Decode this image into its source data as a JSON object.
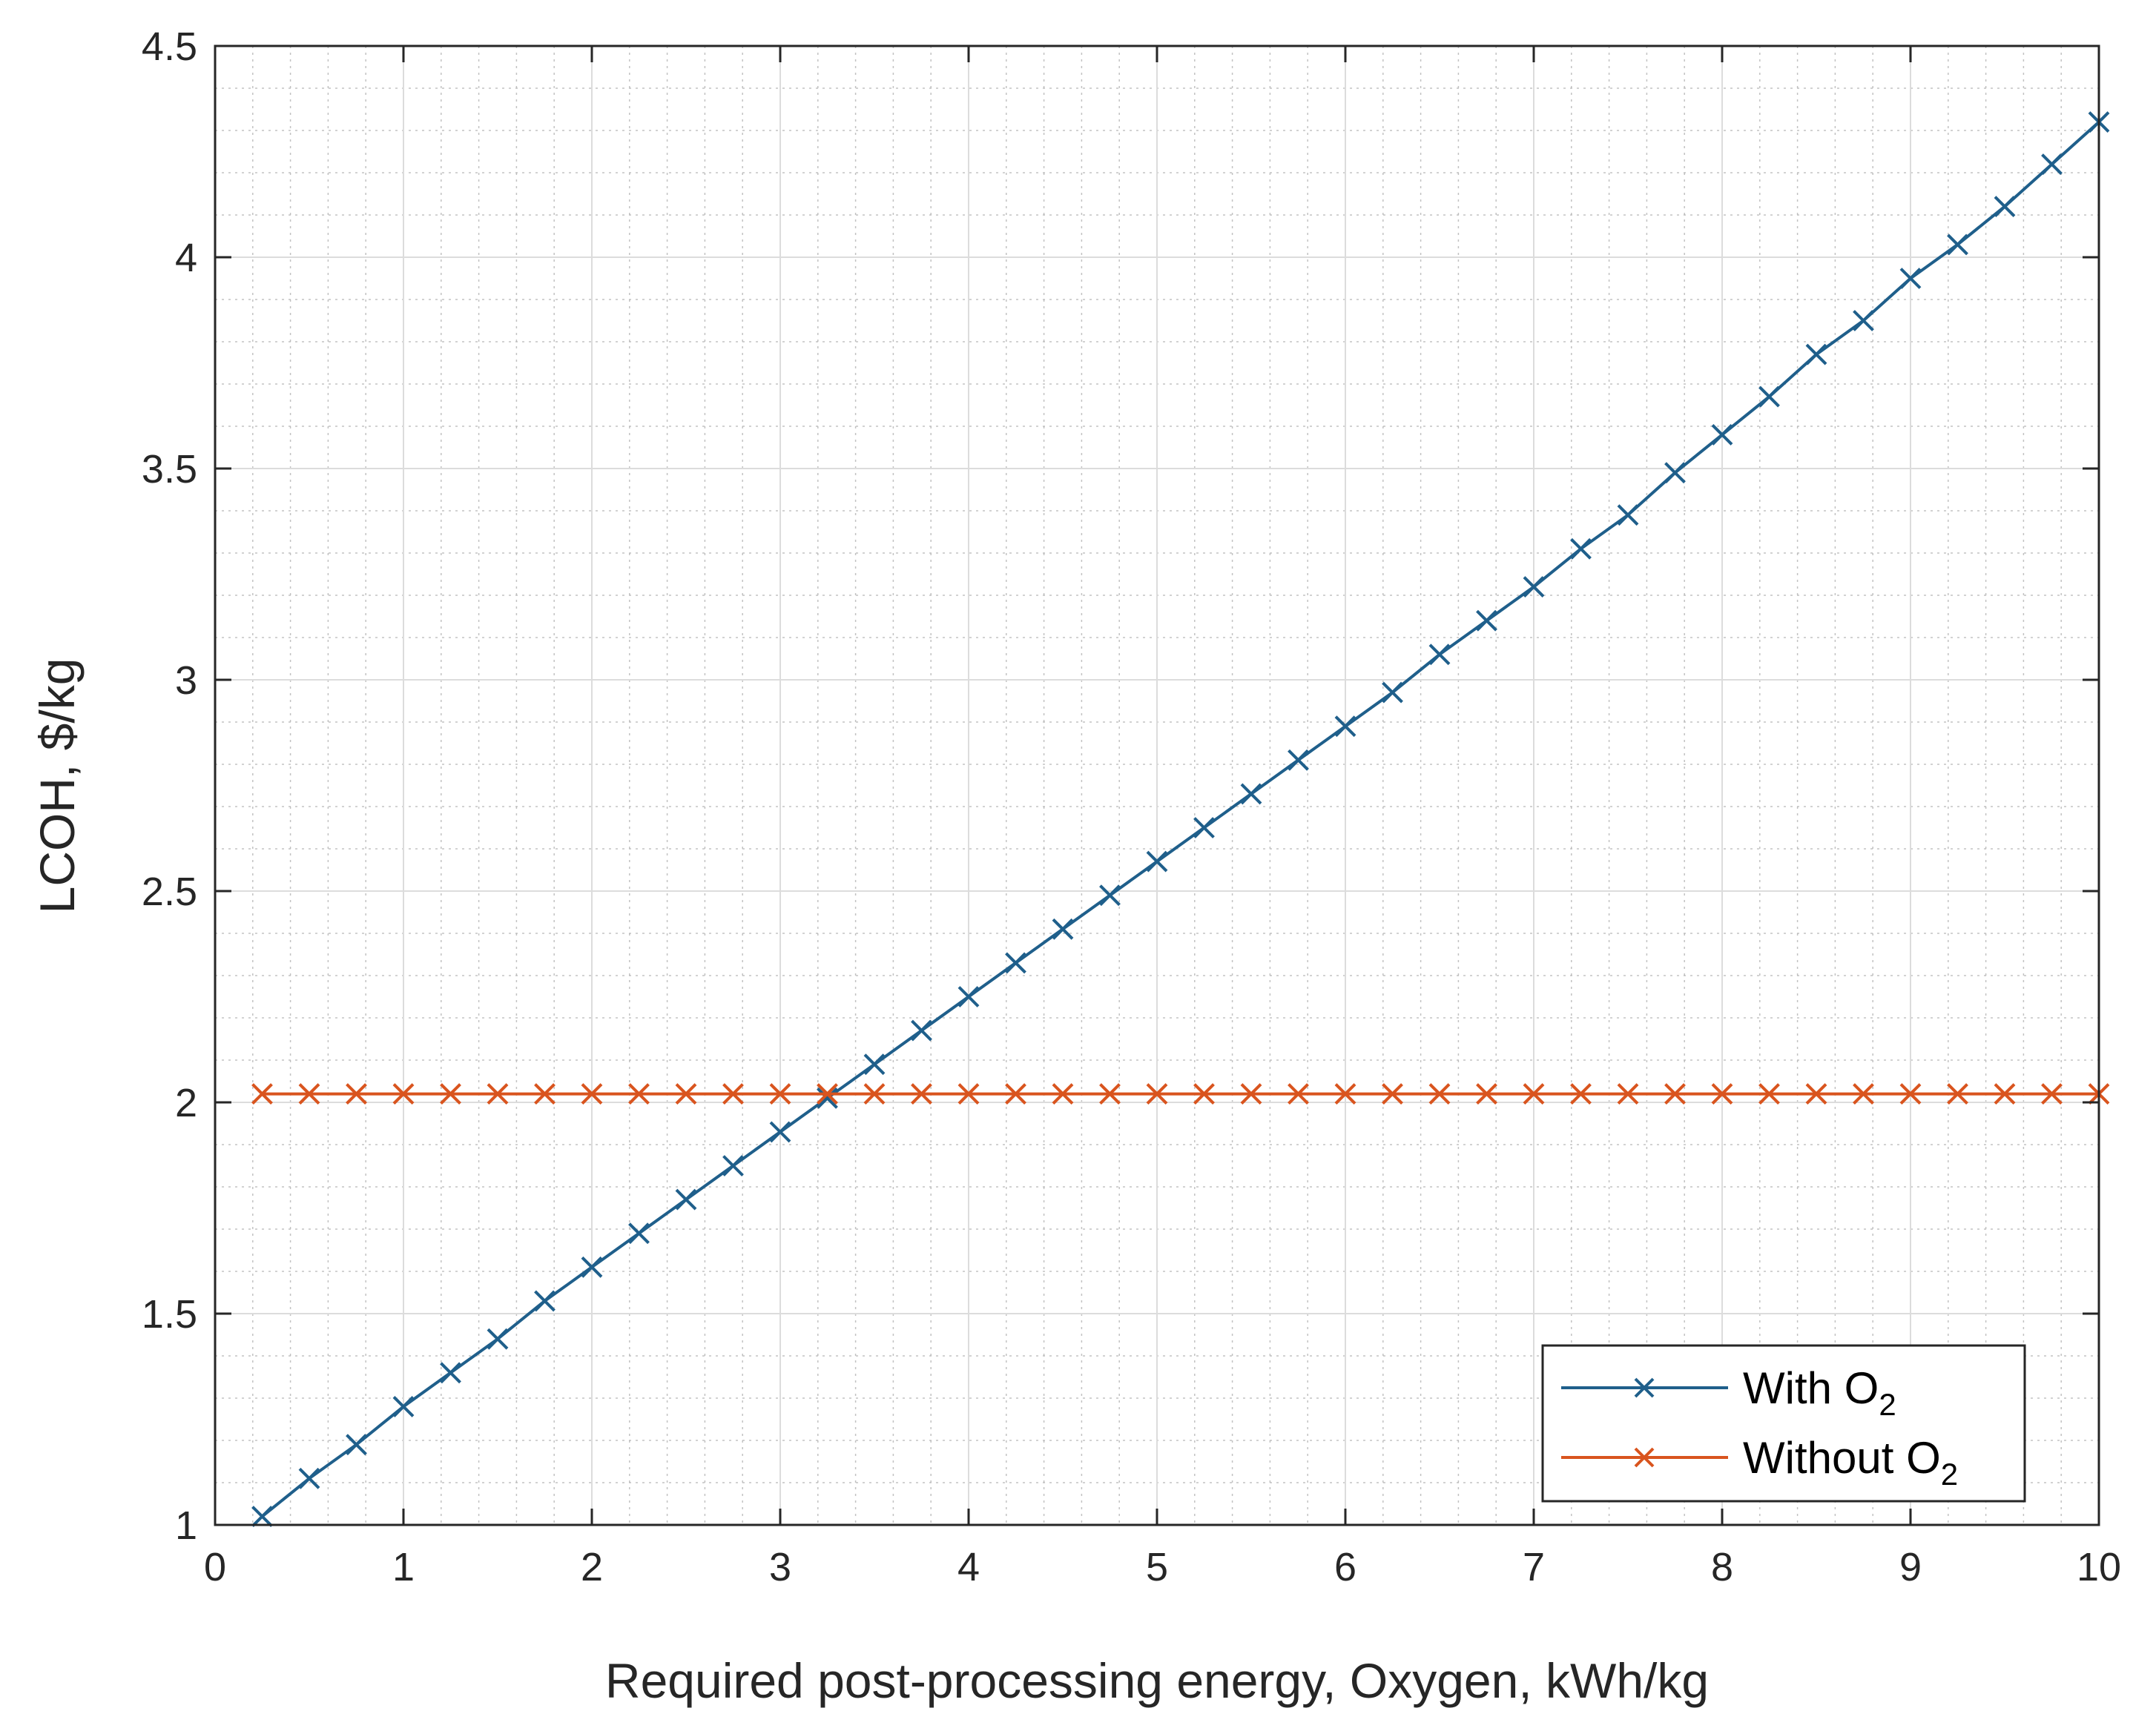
{
  "chart_data": {
    "type": "line",
    "title": "",
    "xlabel": "Required post-processing energy, Oxygen, kWh/kg",
    "ylabel": "LCOH, $/kg",
    "xlim": [
      0,
      10
    ],
    "ylim": [
      1,
      4.5
    ],
    "xticks": [
      0,
      1,
      2,
      3,
      4,
      5,
      6,
      7,
      8,
      9,
      10
    ],
    "yticks": [
      1,
      1.5,
      2,
      2.5,
      3,
      3.5,
      4,
      4.5
    ],
    "xtick_labels": [
      "0",
      "1",
      "2",
      "3",
      "4",
      "5",
      "6",
      "7",
      "8",
      "9",
      "10"
    ],
    "ytick_labels": [
      "1",
      "1.5",
      "2",
      "2.5",
      "3",
      "3.5",
      "4",
      "4.5"
    ],
    "grid": true,
    "minor_grid": true,
    "legend_position": "bottom-right",
    "x": [
      0.25,
      0.5,
      0.75,
      1,
      1.25,
      1.5,
      1.75,
      2,
      2.25,
      2.5,
      2.75,
      3,
      3.25,
      3.5,
      3.75,
      4,
      4.25,
      4.5,
      4.75,
      5,
      5.25,
      5.5,
      5.75,
      6,
      6.25,
      6.5,
      6.75,
      7,
      7.25,
      7.5,
      7.75,
      8,
      8.25,
      8.5,
      8.75,
      9,
      9.25,
      9.5,
      9.75,
      10
    ],
    "series": [
      {
        "name": "With O2",
        "legend_main": "With O",
        "legend_sub": "2",
        "color": "#1f5f8b",
        "marker": "x",
        "values": [
          1.02,
          1.11,
          1.19,
          1.28,
          1.36,
          1.44,
          1.53,
          1.61,
          1.69,
          1.77,
          1.85,
          1.93,
          2.01,
          2.09,
          2.17,
          2.25,
          2.33,
          2.41,
          2.49,
          2.57,
          2.65,
          2.73,
          2.81,
          2.89,
          2.97,
          3.06,
          3.14,
          3.22,
          3.31,
          3.39,
          3.49,
          3.58,
          3.67,
          3.77,
          3.85,
          3.95,
          4.03,
          4.12,
          4.22,
          4.32
        ]
      },
      {
        "name": "Without O2",
        "legend_main": "Without O",
        "legend_sub": "2",
        "color": "#d9541e",
        "marker": "x",
        "values": [
          2.02,
          2.02,
          2.02,
          2.02,
          2.02,
          2.02,
          2.02,
          2.02,
          2.02,
          2.02,
          2.02,
          2.02,
          2.02,
          2.02,
          2.02,
          2.02,
          2.02,
          2.02,
          2.02,
          2.02,
          2.02,
          2.02,
          2.02,
          2.02,
          2.02,
          2.02,
          2.02,
          2.02,
          2.02,
          2.02,
          2.02,
          2.02,
          2.02,
          2.02,
          2.02,
          2.02,
          2.02,
          2.02,
          2.02,
          2.02
        ]
      }
    ]
  }
}
